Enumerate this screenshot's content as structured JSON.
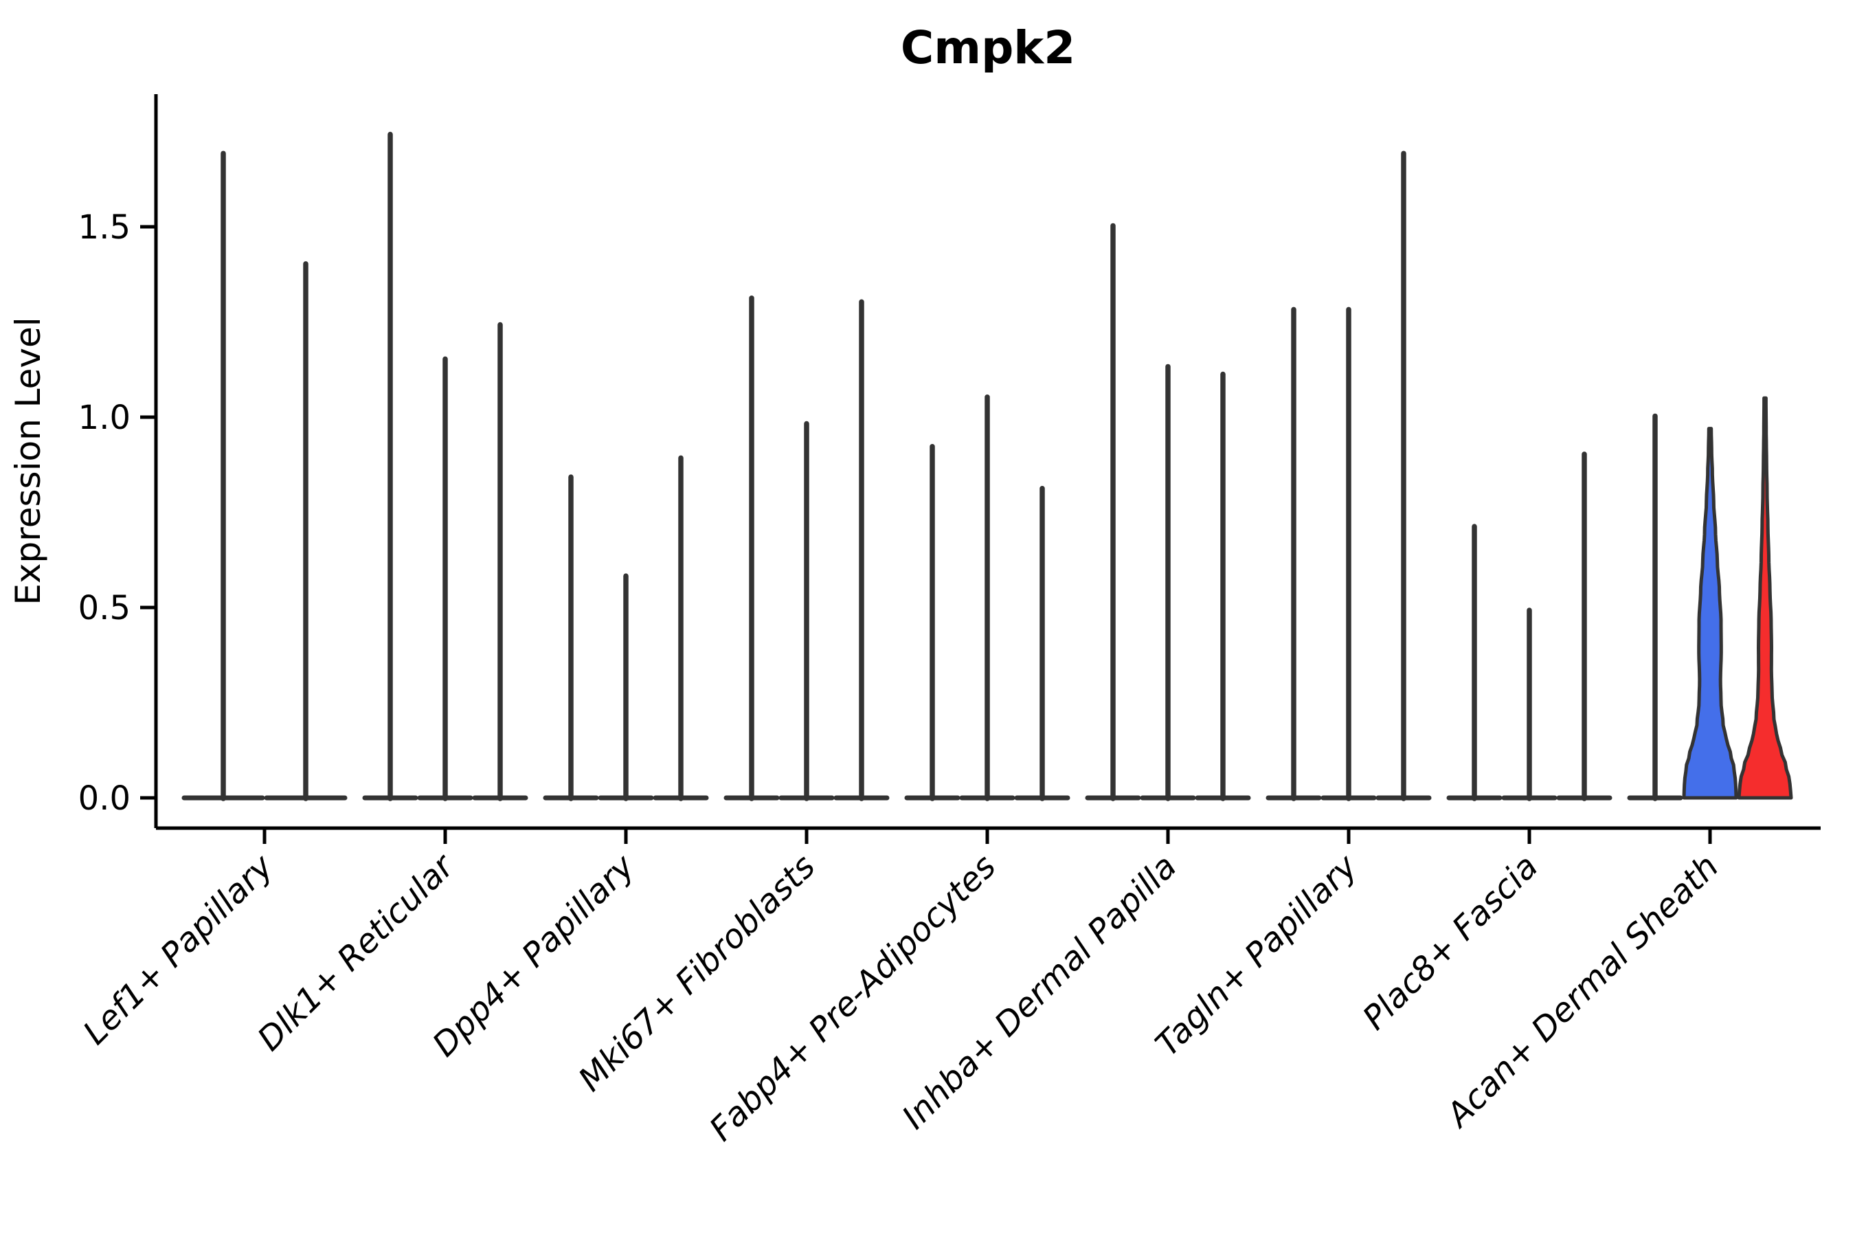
{
  "chart_data": {
    "type": "violin",
    "title": "Cmpk2",
    "ylabel": "Expression Level",
    "xlabel": "",
    "yticks": [
      0.0,
      0.5,
      1.0,
      1.5
    ],
    "ytick_labels": [
      "0.0",
      "0.5",
      "1.0",
      "1.5"
    ],
    "ylim": [
      -0.08,
      1.85
    ],
    "grid": false,
    "legend": "none",
    "categories": [
      "Lef1+ Papillary",
      "Dlk1+ Reticular",
      "Dpp4+ Papillary",
      "Mki67+ Fibroblasts",
      "Fabp4+ Pre-Adipocytes",
      "Inhba+ Dermal Papilla",
      "Tagln+ Papillary",
      "Plac8+ Fascia",
      "Acan+ Dermal Sheath"
    ],
    "groups": [
      {
        "label": "Lef1+ Papillary",
        "violins": [
          {
            "max": 1.7,
            "style": "spike"
          },
          {
            "max": 1.41,
            "style": "spike"
          }
        ]
      },
      {
        "label": "Dlk1+ Reticular",
        "violins": [
          {
            "max": 1.75,
            "style": "spike"
          },
          {
            "max": 1.16,
            "style": "spike"
          },
          {
            "max": 1.25,
            "style": "spike"
          }
        ]
      },
      {
        "label": "Dpp4+ Papillary",
        "violins": [
          {
            "max": 0.85,
            "style": "spike"
          },
          {
            "max": 0.59,
            "style": "spike"
          },
          {
            "max": 0.9,
            "style": "spike"
          }
        ]
      },
      {
        "label": "Mki67+ Fibroblasts",
        "violins": [
          {
            "max": 1.32,
            "style": "spike"
          },
          {
            "max": 0.99,
            "style": "spike"
          },
          {
            "max": 1.31,
            "style": "spike"
          }
        ]
      },
      {
        "label": "Fabp4+ Pre-Adipocytes",
        "violins": [
          {
            "max": 0.93,
            "style": "spike"
          },
          {
            "max": 1.06,
            "style": "spike"
          },
          {
            "max": 0.82,
            "style": "spike"
          }
        ]
      },
      {
        "label": "Inhba+ Dermal Papilla",
        "violins": [
          {
            "max": 1.51,
            "style": "spike"
          },
          {
            "max": 1.14,
            "style": "spike"
          },
          {
            "max": 1.12,
            "style": "spike"
          }
        ]
      },
      {
        "label": "Tagln+ Papillary",
        "violins": [
          {
            "max": 1.29,
            "style": "spike"
          },
          {
            "max": 1.29,
            "style": "spike"
          },
          {
            "max": 1.7,
            "style": "spike"
          }
        ]
      },
      {
        "label": "Plac8+ Fascia",
        "violins": [
          {
            "max": 0.72,
            "style": "spike"
          },
          {
            "max": 0.5,
            "style": "spike"
          },
          {
            "max": 0.91,
            "style": "spike"
          }
        ]
      },
      {
        "label": "Acan+ Dermal Sheath",
        "violins": [
          {
            "max": 1.01,
            "style": "spike"
          },
          {
            "max": 0.97,
            "style": "violin",
            "profile": "blue_wide",
            "color_key": "blue"
          },
          {
            "max": 1.05,
            "style": "violin",
            "profile": "red_narrow",
            "color_key": "red"
          }
        ]
      }
    ],
    "colors": {
      "spike": "#333333",
      "outline": "#333333",
      "blue": "#446FEA",
      "red": "#F52D2D",
      "axis": "#000000"
    },
    "profiles": {
      "blue_wide": [
        [
          0,
          1.0
        ],
        [
          0.04,
          0.98
        ],
        [
          0.08,
          0.92
        ],
        [
          0.12,
          0.78
        ],
        [
          0.16,
          0.62
        ],
        [
          0.2,
          0.5
        ],
        [
          0.26,
          0.42
        ],
        [
          0.32,
          0.4
        ],
        [
          0.4,
          0.43
        ],
        [
          0.48,
          0.42
        ],
        [
          0.56,
          0.36
        ],
        [
          0.64,
          0.28
        ],
        [
          0.72,
          0.21
        ],
        [
          0.8,
          0.14
        ],
        [
          0.88,
          0.09
        ],
        [
          0.94,
          0.06
        ],
        [
          1.0,
          0.045
        ]
      ],
      "red_narrow": [
        [
          0,
          1.0
        ],
        [
          0.04,
          0.95
        ],
        [
          0.08,
          0.8
        ],
        [
          0.12,
          0.6
        ],
        [
          0.16,
          0.44
        ],
        [
          0.2,
          0.34
        ],
        [
          0.26,
          0.27
        ],
        [
          0.32,
          0.245
        ],
        [
          0.38,
          0.25
        ],
        [
          0.44,
          0.235
        ],
        [
          0.52,
          0.19
        ],
        [
          0.6,
          0.145
        ],
        [
          0.68,
          0.11
        ],
        [
          0.76,
          0.08
        ],
        [
          0.84,
          0.06
        ],
        [
          0.92,
          0.045
        ],
        [
          1.0,
          0.035
        ]
      ]
    }
  }
}
